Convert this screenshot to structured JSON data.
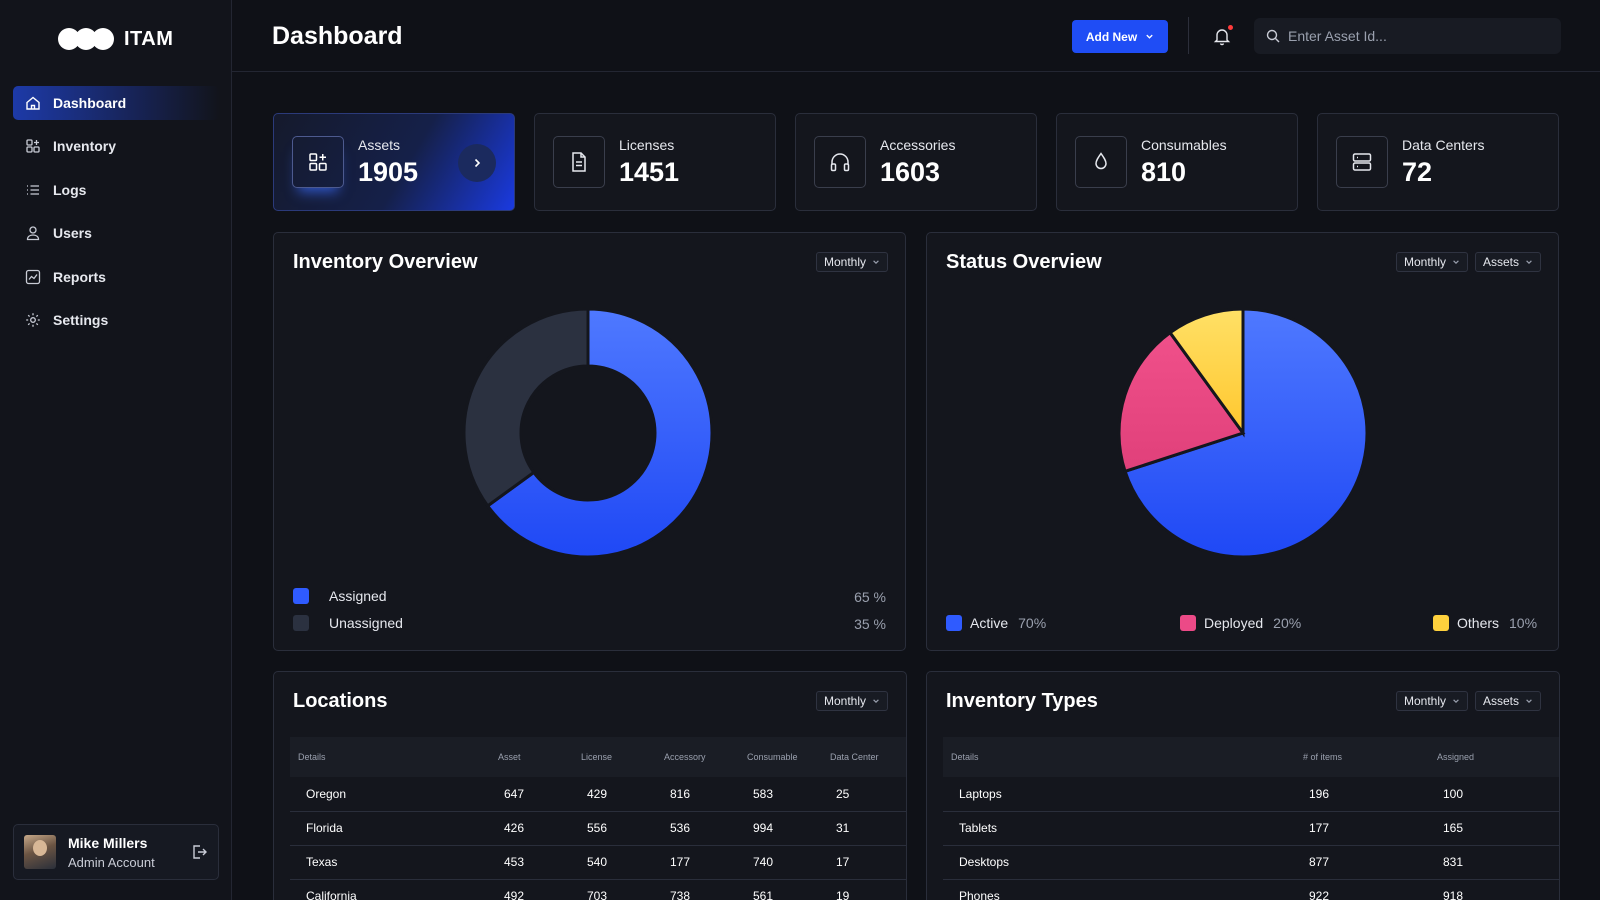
{
  "app": {
    "name": "ITAM"
  },
  "sidebar": {
    "items": [
      {
        "label": "Dashboard",
        "icon": "home-icon",
        "active": true
      },
      {
        "label": "Inventory",
        "icon": "inventory-icon"
      },
      {
        "label": "Logs",
        "icon": "list-icon"
      },
      {
        "label": "Users",
        "icon": "user-icon"
      },
      {
        "label": "Reports",
        "icon": "chart-icon"
      },
      {
        "label": "Settings",
        "icon": "gear-icon"
      }
    ],
    "profile": {
      "name": "Mike Millers",
      "role": "Admin Account"
    }
  },
  "header": {
    "title": "Dashboard",
    "add_button": "Add New",
    "search_placeholder": "Enter Asset Id..."
  },
  "stats": [
    {
      "label": "Assets",
      "value": "1905",
      "icon": "assets-grid-icon"
    },
    {
      "label": "Licenses",
      "value": "1451",
      "icon": "document-icon"
    },
    {
      "label": "Accessories",
      "value": "1603",
      "icon": "headphones-icon"
    },
    {
      "label": "Consumables",
      "value": "810",
      "icon": "drop-icon"
    },
    {
      "label": "Data Centers",
      "value": "72",
      "icon": "server-icon"
    }
  ],
  "inventory_overview": {
    "title": "Inventory Overview",
    "period": "Monthly",
    "legend": [
      {
        "label": "Assigned",
        "pct": "65 %"
      },
      {
        "label": "Unassigned",
        "pct": "35 %"
      }
    ]
  },
  "status_overview": {
    "title": "Status Overview",
    "period": "Monthly",
    "category": "Assets",
    "legend": [
      {
        "label": "Active",
        "pct": "70%"
      },
      {
        "label": "Deployed",
        "pct": "20%"
      },
      {
        "label": "Others",
        "pct": "10%"
      }
    ]
  },
  "locations": {
    "title": "Locations",
    "period": "Monthly",
    "columns": [
      "Details",
      "Asset",
      "License",
      "Accessory",
      "Consumable",
      "Data Center"
    ],
    "rows": [
      [
        "Oregon",
        "647",
        "429",
        "816",
        "583",
        "25"
      ],
      [
        "Florida",
        "426",
        "556",
        "536",
        "994",
        "31"
      ],
      [
        "Texas",
        "453",
        "540",
        "177",
        "740",
        "17"
      ],
      [
        "California",
        "492",
        "703",
        "738",
        "561",
        "19"
      ]
    ]
  },
  "inventory_types": {
    "title": "Inventory Types",
    "period": "Monthly",
    "category": "Assets",
    "columns": [
      "Details",
      "# of items",
      "Assigned"
    ],
    "rows": [
      [
        "Laptops",
        "196",
        "100"
      ],
      [
        "Tablets",
        "177",
        "165"
      ],
      [
        "Desktops",
        "877",
        "831"
      ],
      [
        "Phones",
        "922",
        "918"
      ]
    ]
  },
  "chart_data": [
    {
      "type": "pie",
      "variant": "donut",
      "categories": [
        "Assigned",
        "Unassigned"
      ],
      "values": [
        65,
        35
      ],
      "colors": [
        "#2f5bff",
        "#2b3140"
      ]
    },
    {
      "type": "pie",
      "categories": [
        "Active",
        "Deployed",
        "Others"
      ],
      "values": [
        70,
        20,
        10
      ],
      "colors": [
        "#2f5bff",
        "#ec4a87",
        "#ffd13d"
      ]
    }
  ]
}
